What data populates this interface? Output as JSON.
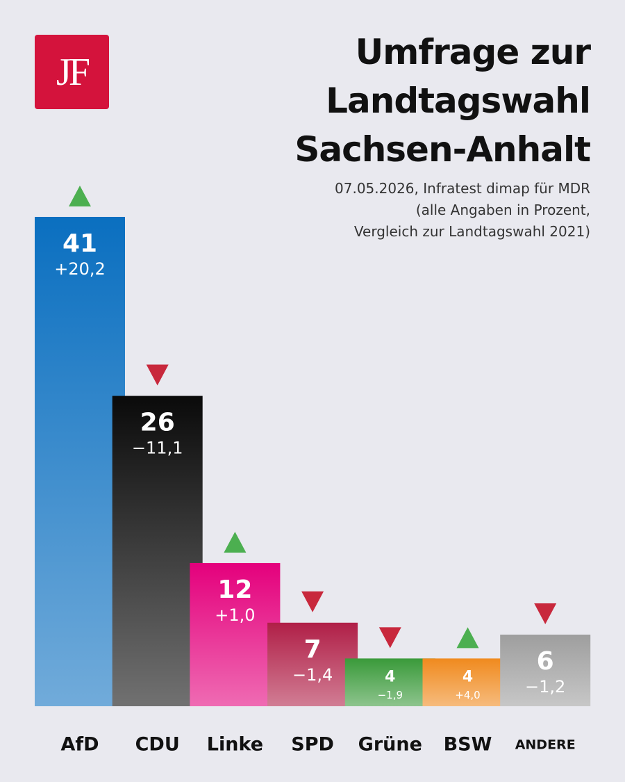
{
  "logo": "JF",
  "chart_data": {
    "type": "bar",
    "title": "Umfrage zur\nLandtagswahl\nSachsen-Anhalt",
    "subtitle": "07.05.2026, Infratest dimap für MDR\n(alle Angaben in Prozent,\nVergleich zur Landtagswahl 2021)",
    "categories": [
      "AfD",
      "CDU",
      "Linke",
      "SPD",
      "Grüne",
      "BSW",
      "ANDERE"
    ],
    "values": [
      41,
      26,
      12,
      7,
      4,
      4,
      6
    ],
    "colors": [
      "#0a6fc0",
      "#0a0a0a",
      "#e4007c",
      "#b01f47",
      "#3a9a3a",
      "#f08a1e",
      "#9e9e9e"
    ],
    "changes": [
      20.2,
      -11.1,
      1.0,
      -1.4,
      -1.9,
      4.0,
      -1.2
    ],
    "change_labels": [
      "+20,2",
      "−11,1",
      "+1,0",
      "−1,4",
      "−1,9",
      "+4,0",
      "−1,2"
    ]
  }
}
